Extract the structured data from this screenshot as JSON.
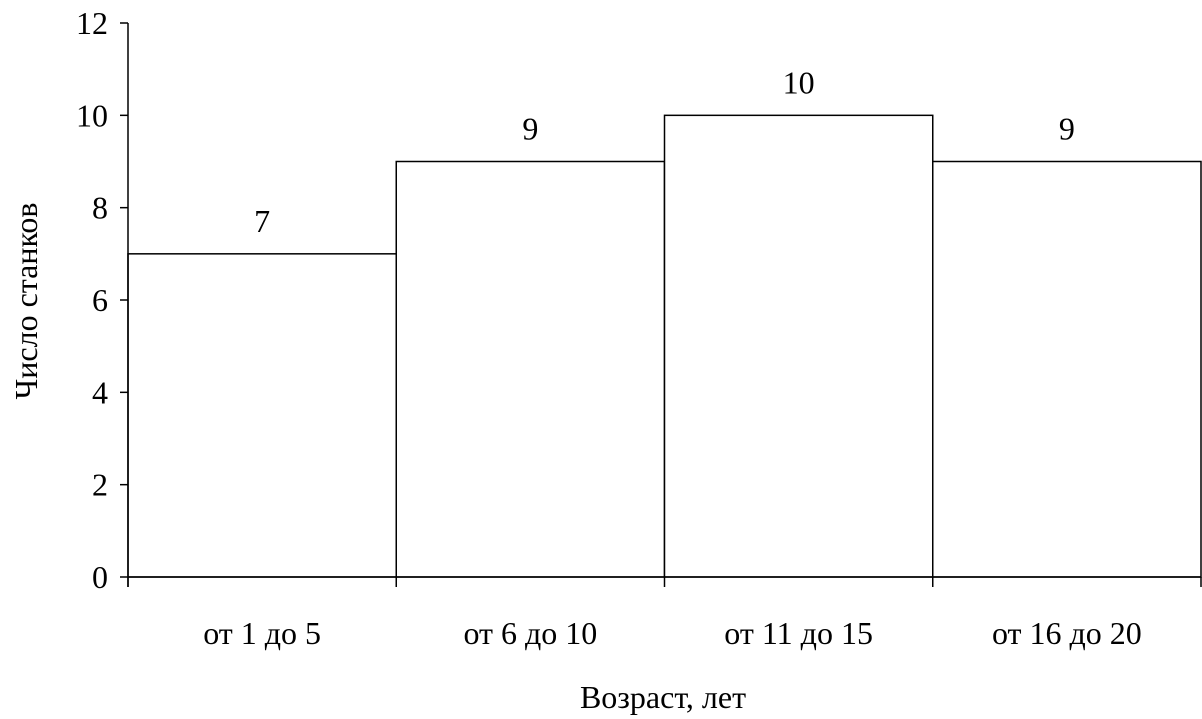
{
  "chart_data": {
    "type": "bar",
    "title": "",
    "xlabel": "Возраст, лет",
    "ylabel": "Число станков",
    "categories": [
      "от 1 до 5",
      "от 6 до 10",
      "от 11 до 15",
      "от 16 до 20"
    ],
    "values": [
      7,
      9,
      10,
      9
    ],
    "data_labels": [
      "7",
      "9",
      "10",
      "9"
    ],
    "ylim": [
      0,
      12
    ],
    "yticks": [
      0,
      2,
      4,
      6,
      8,
      10,
      12
    ],
    "ytick_labels": [
      "0",
      "2",
      "4",
      "6",
      "8",
      "10",
      "12"
    ],
    "grid": false,
    "legend": "none",
    "bar_fill": "#ffffff",
    "bar_stroke": "#000000",
    "axis_color": "#000000"
  }
}
